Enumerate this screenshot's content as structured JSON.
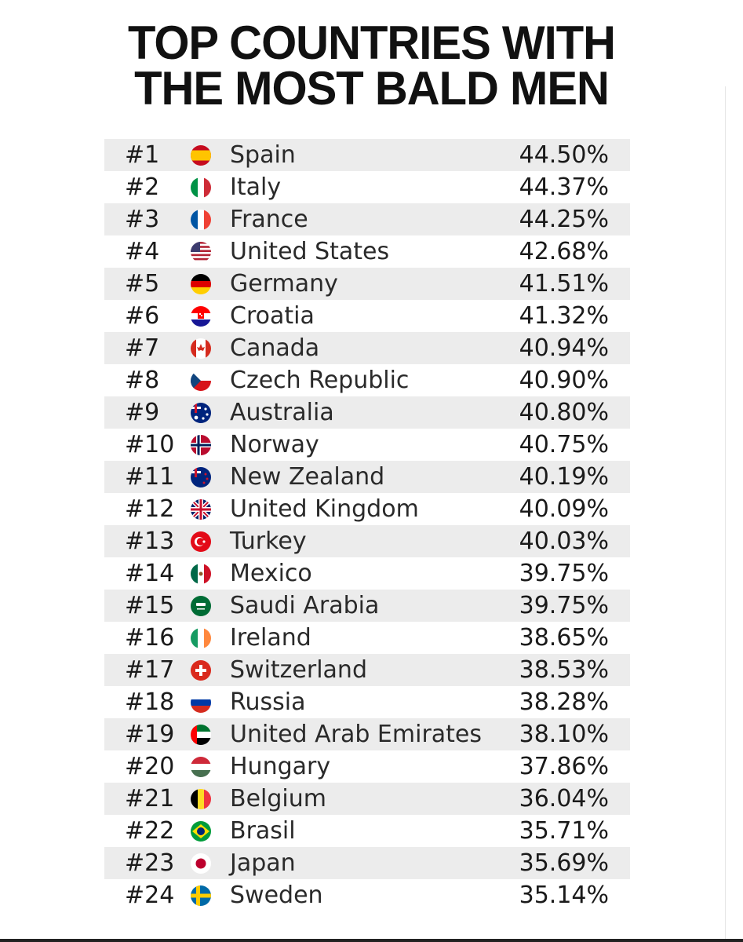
{
  "title": {
    "line1": "TOP COUNTRIES WITH",
    "line2": "THE MOST BALD MEN"
  },
  "rows": [
    {
      "rank": "#1",
      "country": "Spain",
      "percent": "44.50%",
      "flag": "spain-flag-icon"
    },
    {
      "rank": "#2",
      "country": "Italy",
      "percent": "44.37%",
      "flag": "italy-flag-icon"
    },
    {
      "rank": "#3",
      "country": "France",
      "percent": "44.25%",
      "flag": "france-flag-icon"
    },
    {
      "rank": "#4",
      "country": "United States",
      "percent": "42.68%",
      "flag": "usa-flag-icon"
    },
    {
      "rank": "#5",
      "country": "Germany",
      "percent": "41.51%",
      "flag": "germany-flag-icon"
    },
    {
      "rank": "#6",
      "country": "Croatia",
      "percent": "41.32%",
      "flag": "croatia-flag-icon"
    },
    {
      "rank": "#7",
      "country": "Canada",
      "percent": "40.94%",
      "flag": "canada-flag-icon"
    },
    {
      "rank": "#8",
      "country": "Czech Republic",
      "percent": "40.90%",
      "flag": "czech-flag-icon"
    },
    {
      "rank": "#9",
      "country": "Australia",
      "percent": "40.80%",
      "flag": "australia-flag-icon"
    },
    {
      "rank": "#10",
      "country": "Norway",
      "percent": "40.75%",
      "flag": "norway-flag-icon"
    },
    {
      "rank": "#11",
      "country": "New Zealand",
      "percent": "40.19%",
      "flag": "new-zealand-flag-icon"
    },
    {
      "rank": "#12",
      "country": "United Kingdom",
      "percent": "40.09%",
      "flag": "uk-flag-icon"
    },
    {
      "rank": "#13",
      "country": "Turkey",
      "percent": "40.03%",
      "flag": "turkey-flag-icon"
    },
    {
      "rank": "#14",
      "country": "Mexico",
      "percent": "39.75%",
      "flag": "mexico-flag-icon"
    },
    {
      "rank": "#15",
      "country": "Saudi Arabia",
      "percent": "39.75%",
      "flag": "saudi-arabia-flag-icon"
    },
    {
      "rank": "#16",
      "country": "Ireland",
      "percent": "38.65%",
      "flag": "ireland-flag-icon"
    },
    {
      "rank": "#17",
      "country": "Switzerland",
      "percent": "38.53%",
      "flag": "switzerland-flag-icon"
    },
    {
      "rank": "#18",
      "country": "Russia",
      "percent": "38.28%",
      "flag": "russia-flag-icon"
    },
    {
      "rank": "#19",
      "country": "United Arab Emirates",
      "percent": "38.10%",
      "flag": "uae-flag-icon"
    },
    {
      "rank": "#20",
      "country": "Hungary",
      "percent": "37.86%",
      "flag": "hungary-flag-icon"
    },
    {
      "rank": "#21",
      "country": "Belgium",
      "percent": "36.04%",
      "flag": "belgium-flag-icon"
    },
    {
      "rank": "#22",
      "country": "Brasil",
      "percent": "35.71%",
      "flag": "brazil-flag-icon"
    },
    {
      "rank": "#23",
      "country": "Japan",
      "percent": "35.69%",
      "flag": "japan-flag-icon"
    },
    {
      "rank": "#24",
      "country": "Sweden",
      "percent": "35.14%",
      "flag": "sweden-flag-icon"
    }
  ]
}
